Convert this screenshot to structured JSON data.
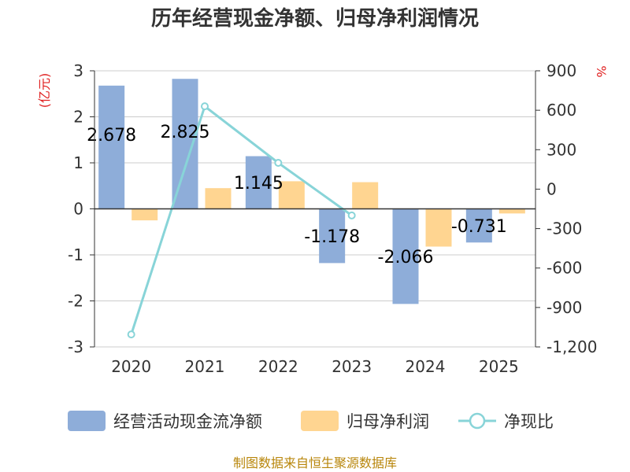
{
  "chart_data": {
    "type": "bar",
    "title": "历年经营现金净额、归母净利润情况",
    "categories": [
      "2020",
      "2021",
      "2022",
      "2023",
      "2024",
      "2025"
    ],
    "y_left": {
      "unit": "(亿元)",
      "lim": [
        -3,
        3
      ],
      "ticks": [
        3,
        2,
        1,
        0,
        -1,
        -2,
        -3
      ]
    },
    "y_right": {
      "unit": "%",
      "lim": [
        -1200,
        900
      ],
      "ticks": [
        "900",
        "600",
        "300",
        "0",
        "-300",
        "-600",
        "-900",
        "-1,200"
      ]
    },
    "series": [
      {
        "name": "经营活动现金流净额",
        "kind": "bar",
        "axis": "left",
        "color": "#8eadd9",
        "values": [
          2.678,
          2.825,
          1.145,
          -1.178,
          -2.066,
          -0.731
        ],
        "labels": [
          "2.678",
          "2.825",
          "1.145",
          "-1.178",
          "-2.066",
          "-0.731"
        ]
      },
      {
        "name": "归母净利润",
        "kind": "bar",
        "axis": "left",
        "color": "#ffd591",
        "values": [
          -0.25,
          0.45,
          0.6,
          0.58,
          -0.82,
          -0.1
        ]
      },
      {
        "name": "净现比",
        "kind": "line",
        "axis": "right",
        "color": "#88d4d8",
        "values": [
          -1105,
          630,
          200,
          -200,
          null,
          null
        ]
      }
    ],
    "source": "制图数据来自恒生聚源数据库"
  }
}
